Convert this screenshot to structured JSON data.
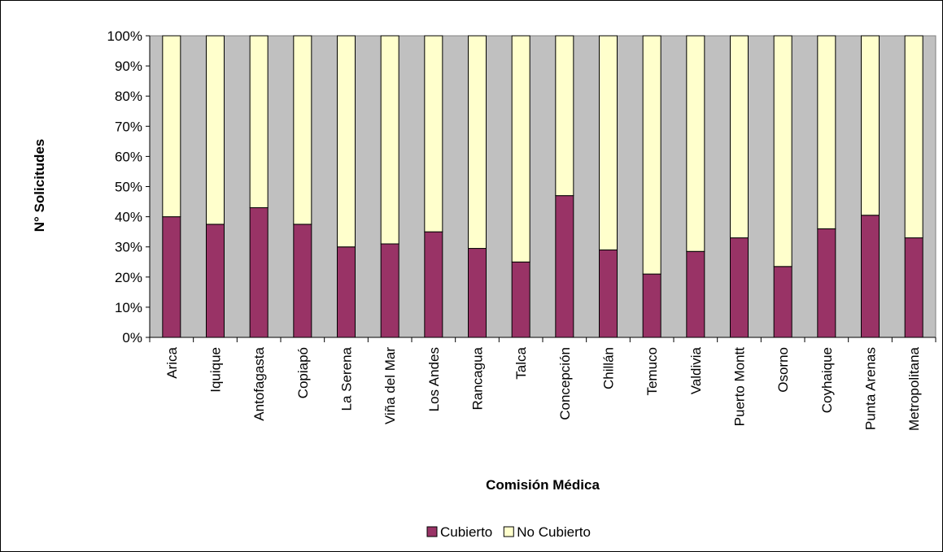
{
  "chart_data": {
    "type": "bar",
    "stacked": true,
    "percent_stacked": true,
    "categories": [
      "Arica",
      "Iquique",
      "Antofagasta",
      "Copiapó",
      "La Serena",
      "Viña del Mar",
      "Los Andes",
      "Rancagua",
      "Talca",
      "Concepción",
      "Chillán",
      "Temuco",
      "Valdivia",
      "Puerto Montt",
      "Osorno",
      "Coyhaique",
      "Punta Arenas",
      "Metropolitana"
    ],
    "series": [
      {
        "name": "Cubierto",
        "color": "#993366",
        "values": [
          40,
          37.5,
          43,
          37.5,
          30,
          31,
          35,
          29.5,
          25,
          47,
          29,
          21,
          28.5,
          33,
          23.5,
          36,
          40.5,
          33
        ]
      },
      {
        "name": "No Cubierto",
        "color": "#FFFFCC",
        "values": [
          60,
          62.5,
          57,
          62.5,
          70,
          69,
          65,
          70.5,
          75,
          53,
          71,
          79,
          71.5,
          67,
          76.5,
          64,
          59.5,
          67
        ]
      }
    ],
    "yticks": [
      "0%",
      "10%",
      "20%",
      "30%",
      "40%",
      "50%",
      "60%",
      "70%",
      "80%",
      "90%",
      "100%"
    ],
    "ylim": [
      0,
      100
    ],
    "xlabel": "Comisión Médica",
    "ylabel": "N° Solicitudes",
    "plot_background": "#C0C0C0",
    "grid": false,
    "legend": "bottom"
  }
}
